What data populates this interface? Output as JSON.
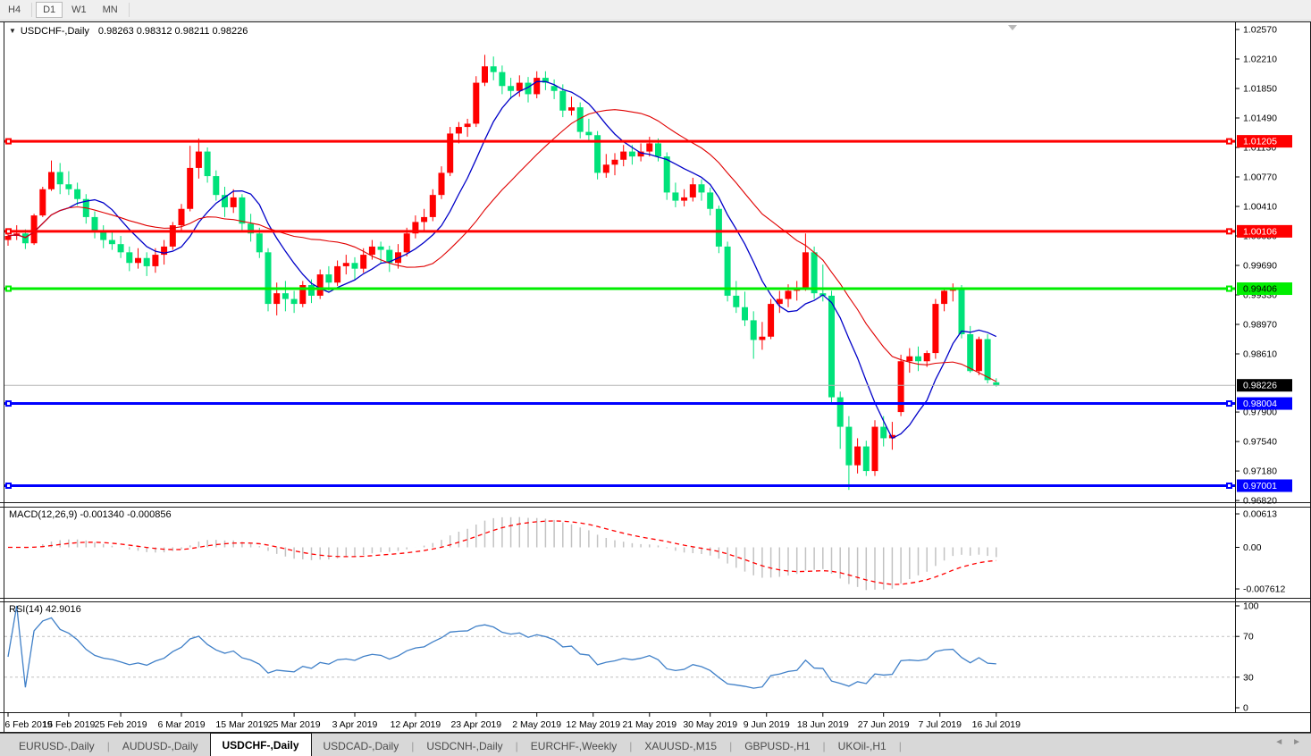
{
  "toolbar": {
    "buttons": [
      {
        "label": "H4",
        "active": false
      },
      {
        "label": "D1",
        "active": true
      },
      {
        "label": "W1",
        "active": false
      },
      {
        "label": "MN",
        "active": false
      }
    ]
  },
  "chart": {
    "symbol_title": "USDCHF-,Daily",
    "ohlc": "0.98263 0.98312 0.98211 0.98226",
    "dropdown_icon": "▼",
    "scroll_marker_icon": "▼",
    "price_ticks": [
      "1.02570",
      "1.02210",
      "1.01850",
      "1.01490",
      "1.01130",
      "1.00770",
      "1.00410",
      "1.00050",
      "0.99690",
      "0.99330",
      "0.98970",
      "0.98610",
      "0.97900",
      "0.97540",
      "0.97180",
      "0.96820"
    ],
    "current_price": {
      "label": "0.98226",
      "value": 0.98226
    },
    "hlines": [
      {
        "label": "1.01205",
        "value": 1.01205,
        "color": "#FF0000",
        "text_color": "#FFFFFF"
      },
      {
        "label": "1.00106",
        "value": 1.00106,
        "color": "#FF0000",
        "text_color": "#FFFFFF"
      },
      {
        "label": "0.99406",
        "value": 0.99406,
        "color": "#00EE00",
        "text_color": "#000000"
      },
      {
        "label": "0.98004",
        "value": 0.98004,
        "color": "#0000FF",
        "text_color": "#FFFFFF"
      },
      {
        "label": "0.97001",
        "value": 0.97001,
        "color": "#0000FF",
        "text_color": "#FFFFFF"
      }
    ],
    "colors": {
      "bull": "#FF0000",
      "bear": "#00E27A",
      "ma_fast": "#0000C8",
      "ma_slow": "#E00000",
      "bid_line": "#B4B4B4"
    },
    "candles": [
      [
        1.0,
        1.0012,
        0.9993,
        1.0005
      ],
      [
        1.0005,
        1.0018,
        1.0,
        1.0008
      ],
      [
        1.0008,
        1.0013,
        0.9989,
        0.9996
      ],
      [
        0.9996,
        1.0032,
        0.9994,
        1.003
      ],
      [
        1.003,
        1.0065,
        1.0028,
        1.0062
      ],
      [
        1.0062,
        1.0097,
        1.006,
        1.0083
      ],
      [
        1.0083,
        1.0094,
        1.0056,
        1.0068
      ],
      [
        1.0068,
        1.0084,
        1.0055,
        1.0062
      ],
      [
        1.0062,
        1.007,
        1.0042,
        1.005
      ],
      [
        1.005,
        1.0056,
        1.002,
        1.0028
      ],
      [
        1.0028,
        1.0035,
        1.0002,
        1.001
      ],
      [
        1.001,
        1.0018,
        0.999,
        1.0
      ],
      [
        1.0,
        1.0012,
        0.9988,
        0.9995
      ],
      [
        0.9995,
        1.0005,
        0.9978,
        0.9985
      ],
      [
        0.9985,
        0.9992,
        0.9962,
        0.9972
      ],
      [
        0.9972,
        0.999,
        0.9965,
        0.9978
      ],
      [
        0.9978,
        0.9985,
        0.9956,
        0.9968
      ],
      [
        0.9968,
        0.999,
        0.996,
        0.9982
      ],
      [
        0.9982,
        1.0,
        0.997,
        0.9992
      ],
      [
        0.9992,
        1.0022,
        0.9988,
        1.0018
      ],
      [
        1.0018,
        1.0044,
        1.0012,
        1.0038
      ],
      [
        1.0038,
        1.0115,
        1.0035,
        1.0088
      ],
      [
        1.0088,
        1.0124,
        1.0075,
        1.0108
      ],
      [
        1.0108,
        1.0113,
        1.007,
        1.0078
      ],
      [
        1.0078,
        1.0085,
        1.0048,
        1.0055
      ],
      [
        1.0055,
        1.0065,
        1.0028,
        1.004
      ],
      [
        1.004,
        1.0062,
        1.0033,
        1.0052
      ],
      [
        1.0052,
        1.0056,
        1.0012,
        1.002
      ],
      [
        1.002,
        1.0032,
        0.9998,
        1.0008
      ],
      [
        1.0008,
        1.0015,
        0.9978,
        0.9985
      ],
      [
        0.9985,
        0.999,
        0.9913,
        0.9922
      ],
      [
        0.9922,
        0.9948,
        0.9908,
        0.9935
      ],
      [
        0.9935,
        0.995,
        0.9913,
        0.9928
      ],
      [
        0.9928,
        0.9938,
        0.9911,
        0.9922
      ],
      [
        0.9922,
        0.995,
        0.9918,
        0.9945
      ],
      [
        0.9945,
        0.9952,
        0.9923,
        0.9932
      ],
      [
        0.9932,
        0.9964,
        0.9928,
        0.9958
      ],
      [
        0.9958,
        0.9968,
        0.9938,
        0.9948
      ],
      [
        0.9948,
        0.9975,
        0.9944,
        0.9968
      ],
      [
        0.9968,
        0.9982,
        0.9958,
        0.9972
      ],
      [
        0.9972,
        0.9979,
        0.9951,
        0.9965
      ],
      [
        0.9965,
        0.999,
        0.996,
        0.9982
      ],
      [
        0.9982,
        1.0,
        0.9976,
        0.9992
      ],
      [
        0.9992,
        0.9998,
        0.9972,
        0.9988
      ],
      [
        0.9988,
        0.9993,
        0.9961,
        0.9972
      ],
      [
        0.9972,
        0.9995,
        0.9965,
        0.9985
      ],
      [
        0.9985,
        1.0015,
        0.998,
        1.0008
      ],
      [
        1.0008,
        1.003,
        1.0002,
        1.0022
      ],
      [
        1.0022,
        1.0038,
        1.0012,
        1.0028
      ],
      [
        1.0028,
        1.0062,
        1.0023,
        1.0055
      ],
      [
        1.0055,
        1.009,
        1.005,
        1.0082
      ],
      [
        1.0082,
        1.0138,
        1.0078,
        1.013
      ],
      [
        1.013,
        1.0144,
        1.0118,
        1.0138
      ],
      [
        1.0138,
        1.0148,
        1.0126,
        1.0142
      ],
      [
        1.0142,
        1.02,
        1.0138,
        1.0192
      ],
      [
        1.0192,
        1.0226,
        1.0188,
        1.0212
      ],
      [
        1.0212,
        1.0224,
        1.0195,
        1.0205
      ],
      [
        1.0205,
        1.0213,
        1.0178,
        1.0188
      ],
      [
        1.0188,
        1.0198,
        1.0172,
        1.0182
      ],
      [
        1.0182,
        1.0201,
        1.0175,
        1.0192
      ],
      [
        1.0192,
        1.0199,
        1.0168,
        1.0178
      ],
      [
        1.0178,
        1.0206,
        1.0173,
        1.0198
      ],
      [
        1.0198,
        1.0206,
        1.0183,
        1.0192
      ],
      [
        1.0188,
        1.0196,
        1.0172,
        1.0182
      ],
      [
        1.0182,
        1.019,
        1.015,
        1.0158
      ],
      [
        1.0158,
        1.0175,
        1.0152,
        1.0162
      ],
      [
        1.0162,
        1.0168,
        1.0124,
        1.0132
      ],
      [
        1.0132,
        1.0148,
        1.0119,
        1.0128
      ],
      [
        1.0128,
        1.0133,
        1.0074,
        1.0082
      ],
      [
        1.0082,
        1.0105,
        1.0076,
        1.0092
      ],
      [
        1.0092,
        1.0106,
        1.0079,
        1.0098
      ],
      [
        1.0098,
        1.0116,
        1.009,
        1.0108
      ],
      [
        1.0108,
        1.0116,
        1.0092,
        1.0102
      ],
      [
        1.0102,
        1.0118,
        1.0096,
        1.0108
      ],
      [
        1.0108,
        1.0126,
        1.0102,
        1.0118
      ],
      [
        1.0118,
        1.0124,
        1.0096,
        1.0102
      ],
      [
        1.0102,
        1.0107,
        1.0049,
        1.0058
      ],
      [
        1.0058,
        1.007,
        1.004,
        1.0048
      ],
      [
        1.0048,
        1.0062,
        1.0041,
        1.0052
      ],
      [
        1.0052,
        1.0076,
        1.0047,
        1.0068
      ],
      [
        1.0068,
        1.0074,
        1.0048,
        1.0058
      ],
      [
        1.0058,
        1.0064,
        1.003,
        1.0038
      ],
      [
        1.0038,
        1.0042,
        0.9984,
        0.9992
      ],
      [
        0.9992,
        0.9998,
        0.9925,
        0.9932
      ],
      [
        0.9932,
        0.995,
        0.9911,
        0.9918
      ],
      [
        0.9918,
        0.9937,
        0.9895,
        0.9902
      ],
      [
        0.9902,
        0.9913,
        0.9855,
        0.9878
      ],
      [
        0.9878,
        0.99,
        0.9866,
        0.9882
      ],
      [
        0.9882,
        0.9928,
        0.9879,
        0.9922
      ],
      [
        0.9922,
        0.9938,
        0.9911,
        0.9928
      ],
      [
        0.9928,
        0.9946,
        0.9918,
        0.9938
      ],
      [
        0.9938,
        0.995,
        0.9926,
        0.9942
      ],
      [
        0.9942,
        1.0008,
        0.9938,
        0.9985
      ],
      [
        0.9985,
        0.9992,
        0.9928,
        0.9935
      ],
      [
        0.9935,
        0.997,
        0.9925,
        0.9932
      ],
      [
        0.9932,
        0.9938,
        0.9802,
        0.9808
      ],
      [
        0.9808,
        0.9815,
        0.9745,
        0.9772
      ],
      [
        0.9772,
        0.9785,
        0.9695,
        0.9725
      ],
      [
        0.9725,
        0.9758,
        0.9715,
        0.9748
      ],
      [
        0.9748,
        0.9755,
        0.9712,
        0.9718
      ],
      [
        0.9718,
        0.978,
        0.9712,
        0.9772
      ],
      [
        0.9772,
        0.9785,
        0.9748,
        0.9758
      ],
      [
        0.9758,
        0.9778,
        0.9744,
        0.9762
      ],
      [
        0.979,
        0.986,
        0.9785,
        0.9852
      ],
      [
        0.9852,
        0.9868,
        0.9838,
        0.9858
      ],
      [
        0.9858,
        0.987,
        0.984,
        0.9852
      ],
      [
        0.9852,
        0.9865,
        0.9845,
        0.9862
      ],
      [
        0.9862,
        0.9928,
        0.9855,
        0.9922
      ],
      [
        0.9922,
        0.9942,
        0.9913,
        0.9938
      ],
      [
        0.9938,
        0.9947,
        0.9925,
        0.9942
      ],
      [
        0.9942,
        0.9945,
        0.988,
        0.9885
      ],
      [
        0.9885,
        0.9895,
        0.9838,
        0.984
      ],
      [
        0.984,
        0.9882,
        0.9835,
        0.9879
      ],
      [
        0.9879,
        0.9885,
        0.9825,
        0.9829
      ],
      [
        0.98263,
        0.98312,
        0.98211,
        0.98226
      ]
    ]
  },
  "macd": {
    "name": "MACD(12,26,9)",
    "values": "-0.001340 -0.000856",
    "axis_ticks": [
      {
        "label": "0.00613",
        "value": 0.00613
      },
      {
        "label": "0.00",
        "value": 0
      },
      {
        "label": "-0.007612",
        "value": -0.007612
      }
    ],
    "colors": {
      "histogram": "#C2C2C2",
      "signal": "#FF0000"
    }
  },
  "rsi": {
    "name": "RSI(14)",
    "value": "42.9016",
    "axis_ticks": [
      {
        "label": "100",
        "value": 100
      },
      {
        "label": "70",
        "value": 70
      },
      {
        "label": "30",
        "value": 30
      },
      {
        "label": "0",
        "value": 0
      }
    ],
    "levels": [
      70,
      30
    ],
    "color": "#4080C8"
  },
  "date_axis": {
    "labels": [
      {
        "text": "6 Feb 2019",
        "idx": 0
      },
      {
        "text": "15 Feb 2019",
        "idx": 7
      },
      {
        "text": "25 Feb 2019",
        "idx": 13
      },
      {
        "text": "6 Mar 2019",
        "idx": 20
      },
      {
        "text": "15 Mar 2019",
        "idx": 27
      },
      {
        "text": "25 Mar 2019",
        "idx": 33
      },
      {
        "text": "3 Apr 2019",
        "idx": 40
      },
      {
        "text": "12 Apr 2019",
        "idx": 47
      },
      {
        "text": "23 Apr 2019",
        "idx": 54
      },
      {
        "text": "2 May 2019",
        "idx": 61
      },
      {
        "text": "12 May 2019",
        "idx": 67.5
      },
      {
        "text": "21 May 2019",
        "idx": 74
      },
      {
        "text": "30 May 2019",
        "idx": 81
      },
      {
        "text": "9 Jun 2019",
        "idx": 87.5
      },
      {
        "text": "18 Jun 2019",
        "idx": 94
      },
      {
        "text": "27 Jun 2019",
        "idx": 101
      },
      {
        "text": "7 Jul 2019",
        "idx": 107.5
      },
      {
        "text": "16 Jul 2019",
        "idx": 114
      }
    ]
  },
  "tabbar": {
    "tabs": [
      {
        "label": "EURUSD-,Daily",
        "active": false
      },
      {
        "label": "AUDUSD-,Daily",
        "active": false
      },
      {
        "label": "USDCHF-,Daily",
        "active": true
      },
      {
        "label": "USDCAD-,Daily",
        "active": false
      },
      {
        "label": "USDCNH-,Daily",
        "active": false
      },
      {
        "label": "EURCHF-,Weekly",
        "active": false
      },
      {
        "label": "XAUUSD-,M15",
        "active": false
      },
      {
        "label": "GBPUSD-,H1",
        "active": false
      },
      {
        "label": "UKOil-,H1",
        "active": false
      }
    ],
    "scroll_left_icon": "◄",
    "scroll_right_icon": "►"
  }
}
